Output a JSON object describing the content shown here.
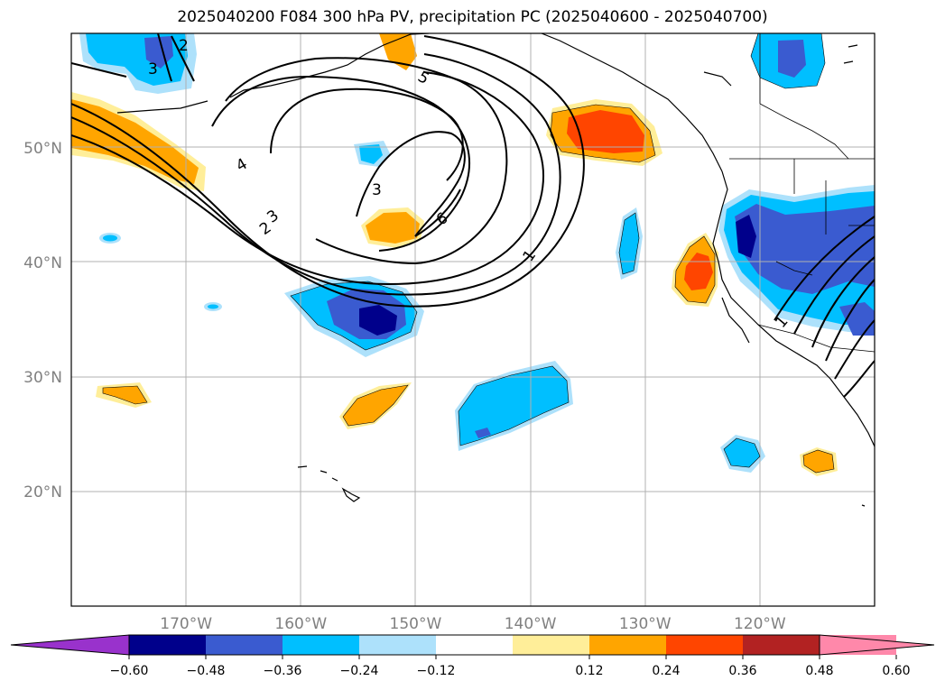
{
  "title": "2025040200 F084 300 hPa PV, precipitation PC (2025040600 - 2025040700)",
  "map": {
    "lon_range": [
      -180,
      -110
    ],
    "lat_range": [
      10,
      60
    ],
    "lat_ticks": [
      {
        "value": 20,
        "label": "20°N"
      },
      {
        "value": 30,
        "label": "30°N"
      },
      {
        "value": 40,
        "label": "40°N"
      },
      {
        "value": 50,
        "label": "50°N"
      }
    ],
    "lon_ticks": [
      {
        "value": -170,
        "label": "170°W"
      },
      {
        "value": -160,
        "label": "160°W"
      },
      {
        "value": -150,
        "label": "150°W"
      },
      {
        "value": -140,
        "label": "140°W"
      },
      {
        "value": -130,
        "label": "130°W"
      },
      {
        "value": -120,
        "label": "120°W"
      }
    ],
    "grid": true
  },
  "pv_contour_labels": [
    "1",
    "2",
    "3",
    "4",
    "5",
    "6"
  ],
  "colorbar": {
    "ticks": [
      "−0.60",
      "−0.48",
      "−0.36",
      "−0.24",
      "−0.12",
      "0.12",
      "0.24",
      "0.36",
      "0.48",
      "0.60"
    ],
    "colors": {
      "under": "#9932cc",
      "bins": [
        "#00008b",
        "#3a5bd0",
        "#00bfff",
        "#ade1fb",
        "#ffffff",
        "#ffee99",
        "#ffa500",
        "#ff4500",
        "#b22222",
        "#ff88aa"
      ],
      "over": "#ff88aa"
    },
    "extend": "both"
  }
}
